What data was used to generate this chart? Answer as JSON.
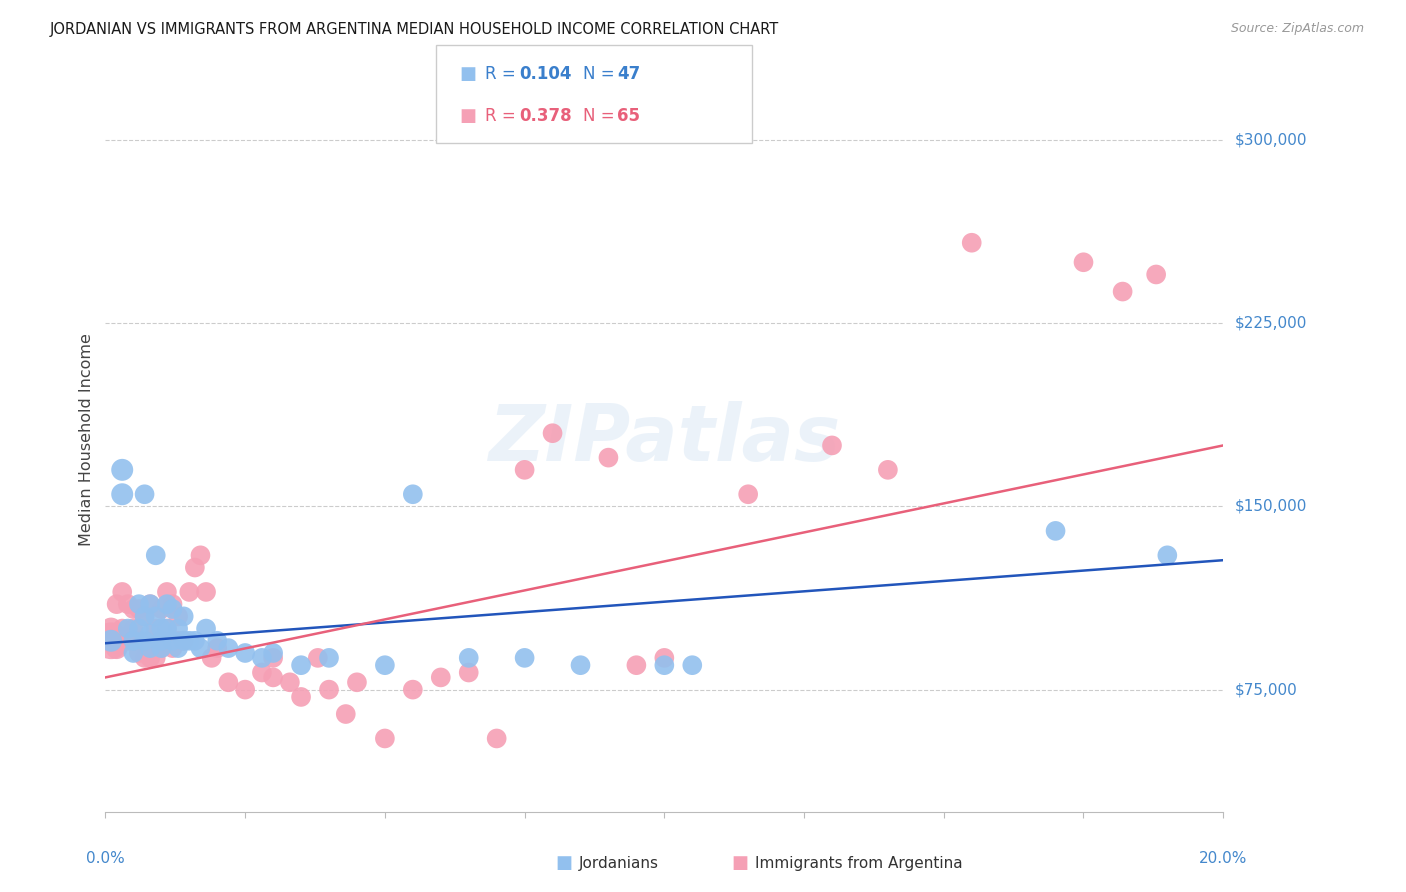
{
  "title": "JORDANIAN VS IMMIGRANTS FROM ARGENTINA MEDIAN HOUSEHOLD INCOME CORRELATION CHART",
  "source": "Source: ZipAtlas.com",
  "ylabel": "Median Household Income",
  "ytick_labels": [
    "$75,000",
    "$150,000",
    "$225,000",
    "$300,000"
  ],
  "ytick_values": [
    75000,
    150000,
    225000,
    300000
  ],
  "ymin": 25000,
  "ymax": 330000,
  "xmin": 0.0,
  "xmax": 0.2,
  "legend_r_blue": "0.104",
  "legend_n_blue": "47",
  "legend_r_pink": "0.378",
  "legend_n_pink": "65",
  "legend_label_blue": "Jordanians",
  "legend_label_pink": "Immigrants from Argentina",
  "color_blue": "#92C0EE",
  "color_pink": "#F5A0B5",
  "color_blue_line": "#2255BB",
  "color_pink_line": "#E8607A",
  "color_blue_text": "#3A7FCC",
  "color_pink_text": "#E8607A",
  "color_axis_labels": "#4488CC",
  "watermark_color": "#A8C8E8",
  "blue_scatter_x": [
    0.001,
    0.003,
    0.003,
    0.004,
    0.005,
    0.005,
    0.006,
    0.006,
    0.007,
    0.007,
    0.007,
    0.008,
    0.008,
    0.008,
    0.009,
    0.009,
    0.01,
    0.01,
    0.01,
    0.011,
    0.011,
    0.012,
    0.012,
    0.013,
    0.013,
    0.014,
    0.014,
    0.015,
    0.016,
    0.017,
    0.018,
    0.02,
    0.022,
    0.025,
    0.028,
    0.03,
    0.035,
    0.04,
    0.05,
    0.055,
    0.065,
    0.075,
    0.085,
    0.1,
    0.105,
    0.17,
    0.19
  ],
  "blue_scatter_y": [
    95000,
    155000,
    165000,
    100000,
    90000,
    95000,
    110000,
    100000,
    105000,
    95000,
    155000,
    110000,
    98000,
    92000,
    130000,
    105000,
    100000,
    95000,
    92000,
    100000,
    110000,
    95000,
    108000,
    92000,
    100000,
    95000,
    105000,
    95000,
    95000,
    92000,
    100000,
    95000,
    92000,
    90000,
    88000,
    90000,
    85000,
    88000,
    85000,
    155000,
    88000,
    88000,
    85000,
    85000,
    85000,
    140000,
    130000
  ],
  "blue_scatter_sizes": [
    25,
    25,
    25,
    20,
    20,
    20,
    20,
    20,
    20,
    20,
    20,
    20,
    20,
    20,
    20,
    20,
    20,
    20,
    20,
    20,
    20,
    20,
    20,
    20,
    20,
    20,
    20,
    20,
    20,
    20,
    20,
    20,
    20,
    20,
    20,
    20,
    20,
    20,
    20,
    20,
    20,
    20,
    20,
    20,
    20,
    20,
    20
  ],
  "pink_scatter_x": [
    0.001,
    0.001,
    0.002,
    0.002,
    0.003,
    0.003,
    0.004,
    0.004,
    0.005,
    0.005,
    0.006,
    0.006,
    0.006,
    0.007,
    0.007,
    0.008,
    0.008,
    0.008,
    0.009,
    0.009,
    0.009,
    0.01,
    0.01,
    0.01,
    0.011,
    0.011,
    0.012,
    0.012,
    0.013,
    0.013,
    0.014,
    0.015,
    0.016,
    0.017,
    0.018,
    0.019,
    0.02,
    0.022,
    0.025,
    0.028,
    0.03,
    0.03,
    0.033,
    0.035,
    0.038,
    0.04,
    0.043,
    0.045,
    0.05,
    0.055,
    0.06,
    0.065,
    0.07,
    0.075,
    0.08,
    0.09,
    0.095,
    0.1,
    0.115,
    0.13,
    0.14,
    0.155,
    0.175,
    0.182,
    0.188
  ],
  "pink_scatter_y": [
    95000,
    100000,
    92000,
    110000,
    100000,
    115000,
    110000,
    95000,
    108000,
    100000,
    95000,
    108000,
    90000,
    105000,
    88000,
    110000,
    95000,
    88000,
    100000,
    92000,
    88000,
    108000,
    95000,
    92000,
    100000,
    115000,
    92000,
    110000,
    95000,
    105000,
    95000,
    115000,
    125000,
    130000,
    115000,
    88000,
    92000,
    78000,
    75000,
    82000,
    80000,
    88000,
    78000,
    72000,
    88000,
    75000,
    65000,
    78000,
    55000,
    75000,
    80000,
    82000,
    55000,
    165000,
    180000,
    170000,
    85000,
    88000,
    155000,
    175000,
    165000,
    258000,
    250000,
    238000,
    245000
  ],
  "pink_scatter_sizes": [
    70,
    25,
    25,
    20,
    20,
    20,
    20,
    20,
    20,
    20,
    20,
    20,
    20,
    20,
    20,
    20,
    20,
    20,
    20,
    20,
    20,
    20,
    20,
    20,
    20,
    20,
    20,
    20,
    20,
    20,
    20,
    20,
    20,
    20,
    20,
    20,
    20,
    20,
    20,
    20,
    20,
    20,
    20,
    20,
    20,
    20,
    20,
    20,
    20,
    20,
    20,
    20,
    20,
    20,
    20,
    20,
    20,
    20,
    20,
    20,
    20,
    20,
    20,
    20,
    20
  ],
  "blue_line_x": [
    0.0,
    0.2
  ],
  "blue_line_y": [
    94000,
    128000
  ],
  "pink_line_x": [
    0.0,
    0.2
  ],
  "pink_line_y": [
    80000,
    175000
  ]
}
